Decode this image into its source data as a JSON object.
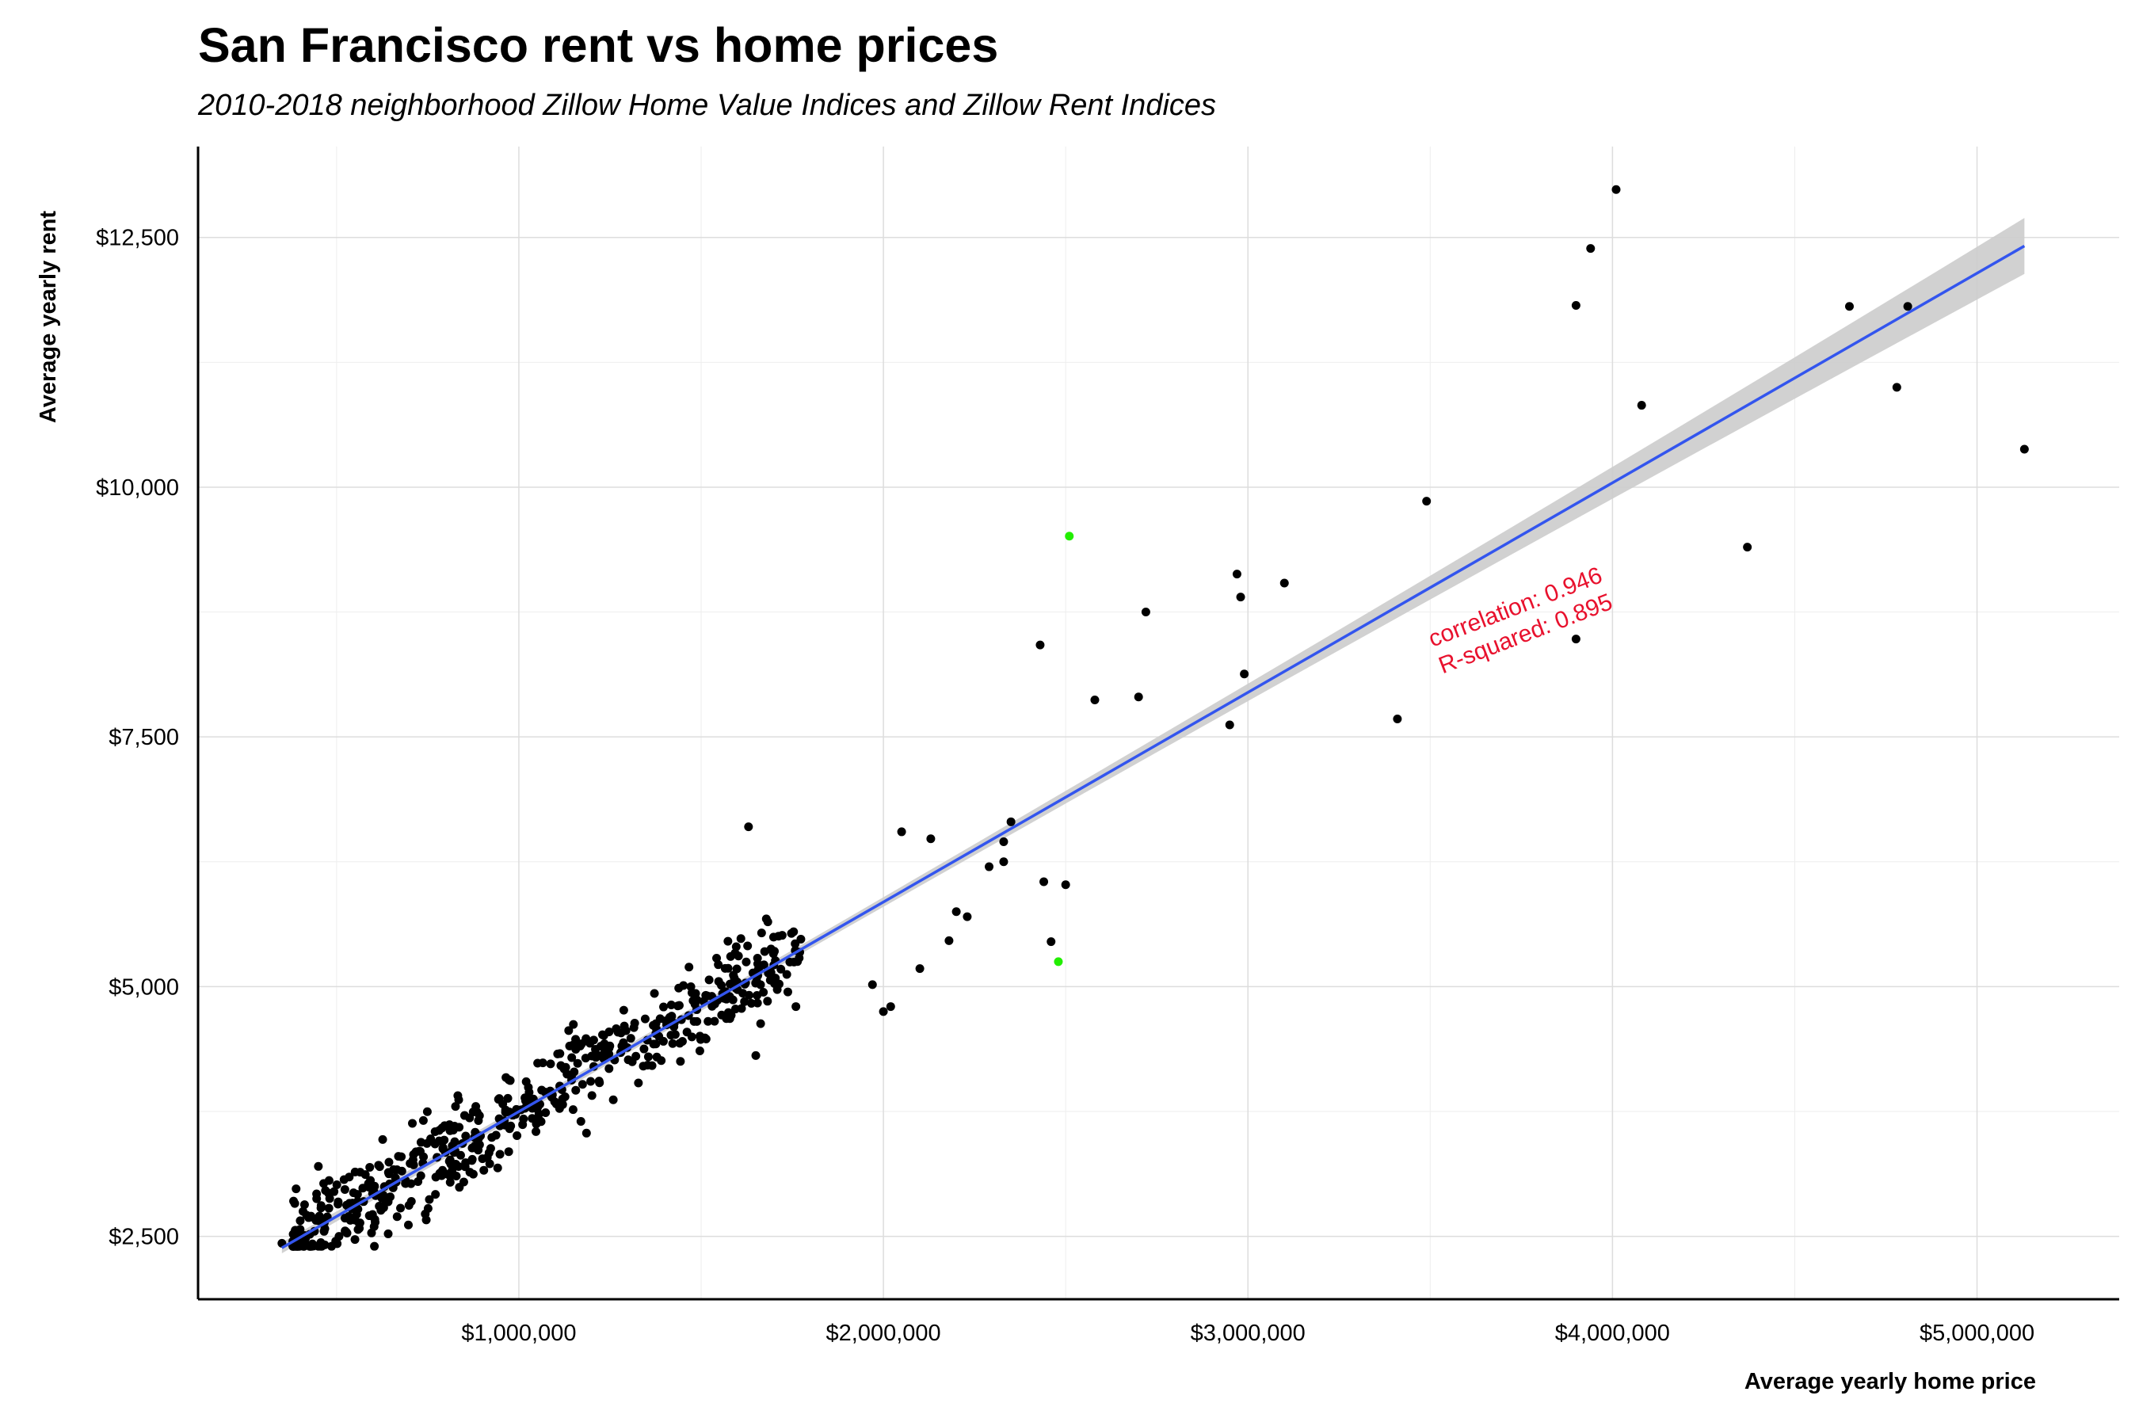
{
  "chart_data": {
    "type": "scatter",
    "title": "San Francisco rent vs home prices",
    "subtitle": "2010-2018 neighborhood Zillow Home Value Indices and Zillow Rent Indices",
    "xlabel": "Average yearly home price",
    "ylabel": "Average yearly rent",
    "xlim": [
      120000,
      5390000
    ],
    "ylim": [
      1870,
      13410
    ],
    "x_ticks": [
      1000000,
      2000000,
      3000000,
      4000000,
      5000000
    ],
    "x_tick_labels": [
      "$1,000,000",
      "$2,000,000",
      "$3,000,000",
      "$4,000,000",
      "$5,000,000"
    ],
    "y_ticks": [
      2500,
      5000,
      7500,
      10000,
      12500
    ],
    "y_tick_labels": [
      "$2,500",
      "$5,000",
      "$7,500",
      "$10,000",
      "$12,500"
    ],
    "grid": true,
    "point_color": "#000000",
    "highlight_color": "#22ee00",
    "fit_line_color": "#3355ee",
    "ci_band_color": "#cccccc",
    "annotation_color": "#e8112d",
    "annotation": [
      "correlation: 0.946",
      "R-squared: 0.895"
    ],
    "fit_line": {
      "slope": 0.0020984,
      "intercept": 1650,
      "x_range": [
        350000,
        5130000
      ]
    },
    "points_outliers": [
      [
        350000,
        2430
      ],
      [
        400000,
        2570
      ],
      [
        450000,
        3200
      ],
      [
        1630000,
        6600
      ],
      [
        2050000,
        6550
      ],
      [
        2130000,
        6480
      ],
      [
        2350000,
        6650
      ],
      [
        2330000,
        6450
      ],
      [
        2430000,
        8420
      ],
      [
        2510000,
        9510
      ],
      [
        2480000,
        5250
      ],
      [
        2440000,
        6050
      ],
      [
        2500000,
        6020
      ],
      [
        2460000,
        5450
      ],
      [
        2580000,
        7870
      ],
      [
        2700000,
        7900
      ],
      [
        2720000,
        8750
      ],
      [
        2950000,
        7620
      ],
      [
        2970000,
        9130
      ],
      [
        2980000,
        8900
      ],
      [
        2990000,
        8130
      ],
      [
        3100000,
        9040
      ],
      [
        3410000,
        7680
      ],
      [
        3490000,
        9860
      ],
      [
        3900000,
        11820
      ],
      [
        3900000,
        8480
      ],
      [
        3940000,
        12390
      ],
      [
        4010000,
        12980
      ],
      [
        4080000,
        10820
      ],
      [
        4370000,
        9400
      ],
      [
        4650000,
        11810
      ],
      [
        4780000,
        11000
      ],
      [
        4810000,
        11810
      ],
      [
        5130000,
        10380
      ],
      [
        2000000,
        4750
      ],
      [
        2020000,
        4800
      ],
      [
        2100000,
        5180
      ],
      [
        2180000,
        5460
      ],
      [
        2200000,
        5750
      ],
      [
        2230000,
        5700
      ],
      [
        2290000,
        6200
      ],
      [
        2330000,
        6250
      ],
      [
        1650000,
        4310
      ],
      [
        1970000,
        5020
      ],
      [
        1760000,
        4800
      ]
    ],
    "cluster_seed": 7,
    "cluster_count": 560
  }
}
